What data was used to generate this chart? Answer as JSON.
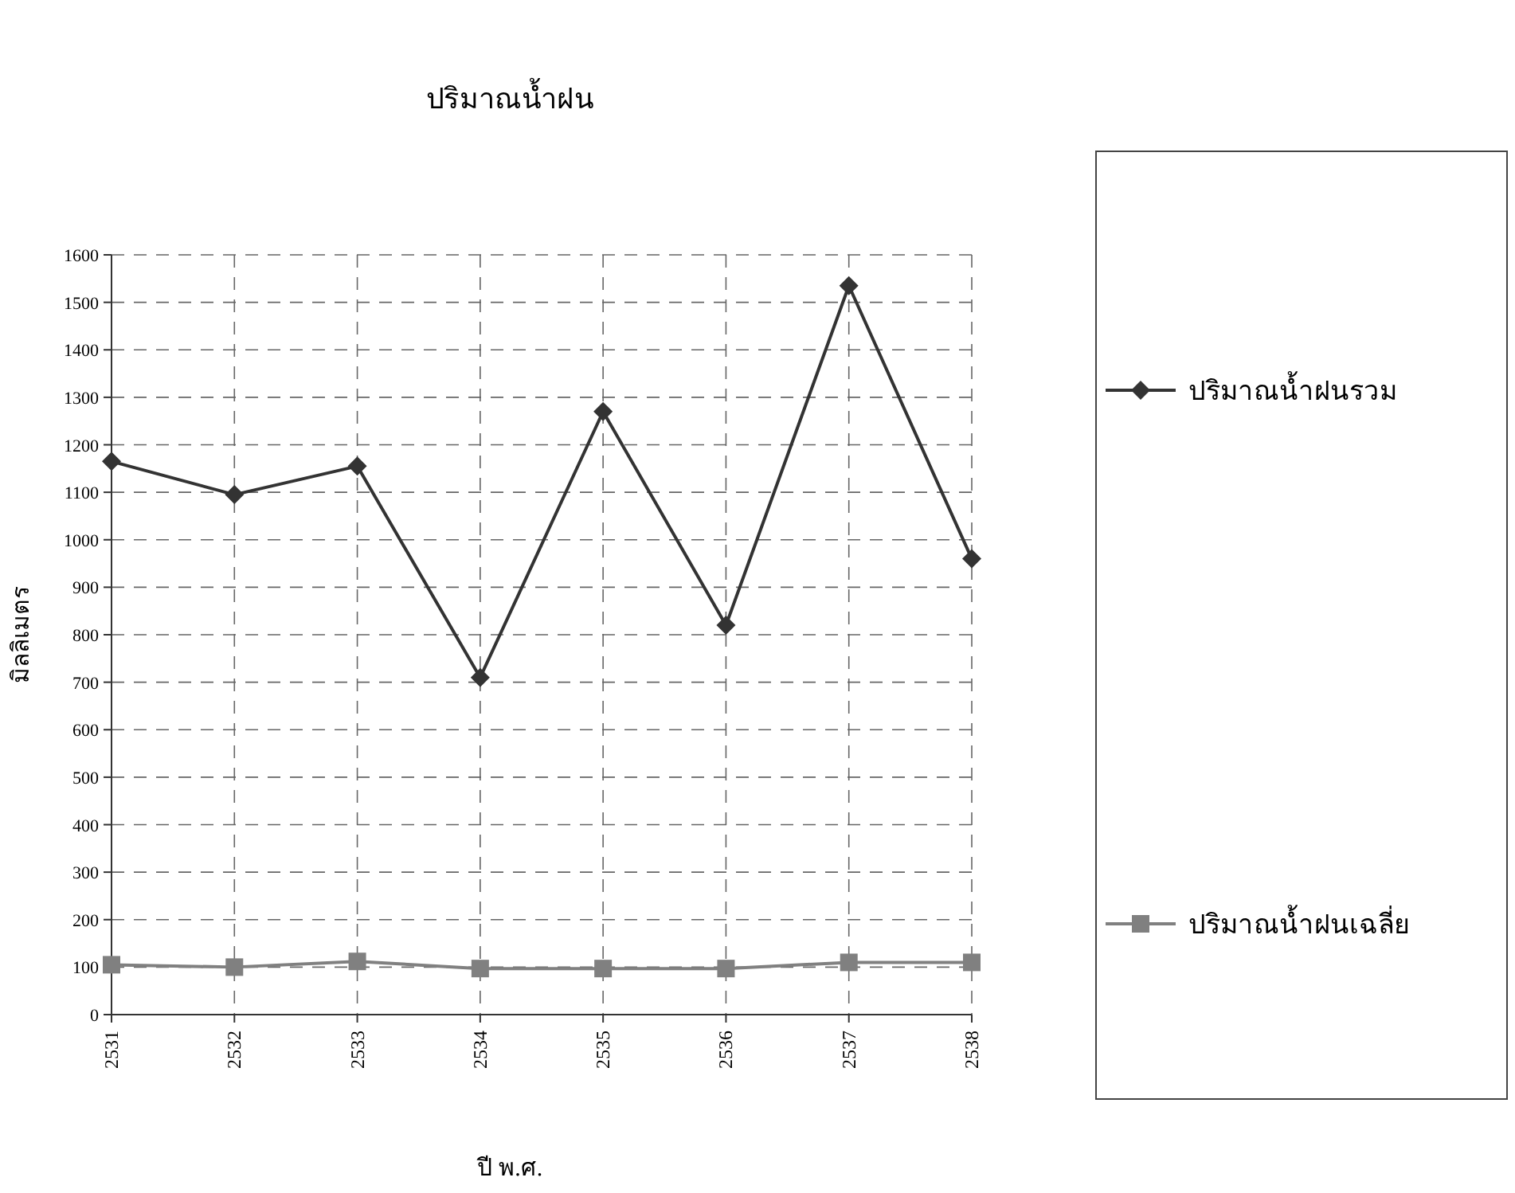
{
  "chart_data": {
    "type": "line",
    "title": "ปริมาณน้ำฝน",
    "xlabel": "ปี พ.ศ.",
    "ylabel": "มิลลิเมตร",
    "categories": [
      "2531",
      "2532",
      "2533",
      "2534",
      "2535",
      "2536",
      "2537",
      "2538"
    ],
    "series": [
      {
        "name": "ปริมาณน้ำฝนรวม",
        "color": "#333333",
        "marker": "diamond",
        "values": [
          1165,
          1095,
          1155,
          710,
          1270,
          820,
          1535,
          960
        ]
      },
      {
        "name": "ปริมาณน้ำฝนเฉลี่ย",
        "color": "#808080",
        "marker": "square",
        "values": [
          105,
          100,
          112,
          97,
          97,
          97,
          110,
          110
        ]
      }
    ],
    "ylim": [
      0,
      1600
    ],
    "yticks": [
      0,
      100,
      200,
      300,
      400,
      500,
      600,
      700,
      800,
      900,
      1000,
      1100,
      1200,
      1300,
      1400,
      1500,
      1600
    ],
    "grid": true,
    "legend": "right",
    "line_style": "solid"
  }
}
